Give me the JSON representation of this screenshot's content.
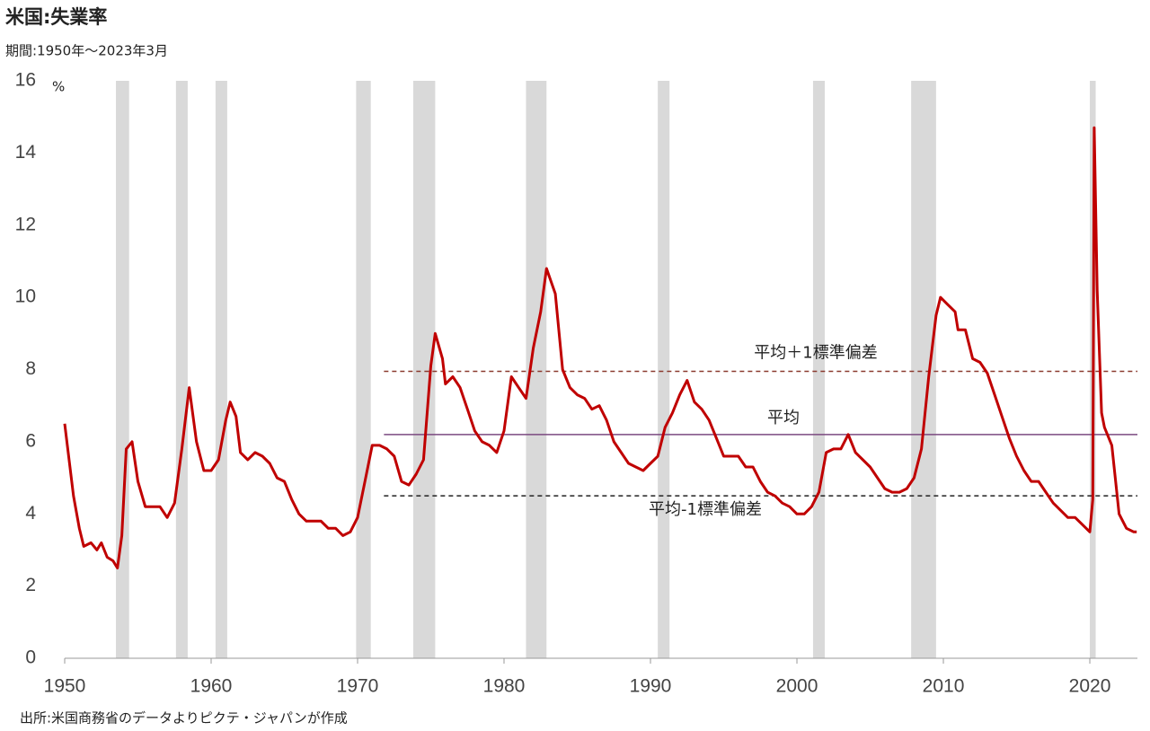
{
  "chart_data": {
    "type": "line",
    "title": "米国:失業率",
    "subtitle": "期間:1950年～2023年3月",
    "source": "出所:米国商務省のデータよりピクテ・ジャパンが作成",
    "y_unit": "%",
    "color": "#c00000",
    "xlim": [
      1950,
      2023.25
    ],
    "ylim": [
      0,
      16
    ],
    "xticks": [
      1950,
      1960,
      1970,
      1980,
      1990,
      2000,
      2010,
      2020
    ],
    "yticks": [
      0,
      2,
      4,
      6,
      8,
      10,
      12,
      14,
      16
    ],
    "recessions": [
      [
        1953.5,
        1954.4
      ],
      [
        1957.6,
        1958.4
      ],
      [
        1960.3,
        1961.1
      ],
      [
        1969.9,
        1970.9
      ],
      [
        1973.8,
        1975.3
      ],
      [
        1981.5,
        1982.9
      ],
      [
        1990.5,
        1991.3
      ],
      [
        2001.1,
        2001.9
      ],
      [
        2007.8,
        2009.5
      ],
      [
        2020.0,
        2020.4
      ]
    ],
    "reference_lines": [
      {
        "label": "平均＋1標準偏差",
        "value": 7.95,
        "from": 1971.8,
        "color": "#8b3a2f",
        "dashed": true
      },
      {
        "label": "平均",
        "value": 6.2,
        "from": 1971.8,
        "color": "#7b4a80",
        "dashed": false
      },
      {
        "label": "平均-1標準偏差",
        "value": 4.5,
        "from": 1971.8,
        "color": "#222222",
        "dashed": true
      }
    ],
    "x": [
      1950.0,
      1950.3,
      1950.6,
      1951.0,
      1951.3,
      1951.8,
      1952.2,
      1952.5,
      1952.9,
      1953.3,
      1953.6,
      1953.9,
      1954.2,
      1954.6,
      1955.0,
      1955.5,
      1956.0,
      1956.5,
      1957.0,
      1957.5,
      1958.0,
      1958.5,
      1959.0,
      1959.5,
      1960.0,
      1960.5,
      1961.0,
      1961.3,
      1961.7,
      1962.0,
      1962.5,
      1963.0,
      1963.5,
      1964.0,
      1964.5,
      1965.0,
      1965.5,
      1966.0,
      1966.5,
      1967.0,
      1967.5,
      1968.0,
      1968.5,
      1969.0,
      1969.5,
      1970.0,
      1970.5,
      1971.0,
      1971.5,
      1972.0,
      1972.5,
      1973.0,
      1973.5,
      1974.0,
      1974.5,
      1975.0,
      1975.3,
      1975.8,
      1976.0,
      1976.5,
      1977.0,
      1977.5,
      1978.0,
      1978.5,
      1979.0,
      1979.5,
      1980.0,
      1980.5,
      1981.0,
      1981.5,
      1982.0,
      1982.5,
      1982.9,
      1983.5,
      1984.0,
      1984.5,
      1985.0,
      1985.5,
      1986.0,
      1986.5,
      1987.0,
      1987.5,
      1988.0,
      1988.5,
      1989.0,
      1989.5,
      1990.0,
      1990.5,
      1991.0,
      1991.5,
      1992.0,
      1992.5,
      1993.0,
      1993.5,
      1994.0,
      1994.5,
      1995.0,
      1995.5,
      1996.0,
      1996.5,
      1997.0,
      1997.5,
      1998.0,
      1998.5,
      1999.0,
      1999.5,
      2000.0,
      2000.5,
      2001.0,
      2001.5,
      2002.0,
      2002.5,
      2003.0,
      2003.5,
      2004.0,
      2004.5,
      2005.0,
      2005.5,
      2006.0,
      2006.5,
      2007.0,
      2007.5,
      2008.0,
      2008.5,
      2009.0,
      2009.5,
      2009.8,
      2010.3,
      2010.8,
      2011.0,
      2011.5,
      2012.0,
      2012.5,
      2013.0,
      2013.5,
      2014.0,
      2014.5,
      2015.0,
      2015.5,
      2016.0,
      2016.5,
      2017.0,
      2017.5,
      2018.0,
      2018.5,
      2019.0,
      2019.5,
      2020.0,
      2020.2,
      2020.3,
      2020.5,
      2020.8,
      2021.0,
      2021.5,
      2022.0,
      2022.5,
      2023.0,
      2023.2
    ],
    "values": [
      6.5,
      5.5,
      4.5,
      3.6,
      3.1,
      3.2,
      3.0,
      3.2,
      2.8,
      2.7,
      2.5,
      3.4,
      5.8,
      6.0,
      4.9,
      4.2,
      4.2,
      4.2,
      3.9,
      4.3,
      5.8,
      7.5,
      6.0,
      5.2,
      5.2,
      5.5,
      6.6,
      7.1,
      6.7,
      5.7,
      5.5,
      5.7,
      5.6,
      5.4,
      5.0,
      4.9,
      4.4,
      4.0,
      3.8,
      3.8,
      3.8,
      3.6,
      3.6,
      3.4,
      3.5,
      3.9,
      4.9,
      5.9,
      5.9,
      5.8,
      5.6,
      4.9,
      4.8,
      5.1,
      5.5,
      8.1,
      9.0,
      8.3,
      7.6,
      7.8,
      7.5,
      6.9,
      6.3,
      6.0,
      5.9,
      5.7,
      6.3,
      7.8,
      7.5,
      7.2,
      8.6,
      9.6,
      10.8,
      10.1,
      8.0,
      7.5,
      7.3,
      7.2,
      6.9,
      7.0,
      6.6,
      6.0,
      5.7,
      5.4,
      5.3,
      5.2,
      5.4,
      5.6,
      6.4,
      6.8,
      7.3,
      7.7,
      7.1,
      6.9,
      6.6,
      6.1,
      5.6,
      5.6,
      5.6,
      5.3,
      5.3,
      4.9,
      4.6,
      4.5,
      4.3,
      4.2,
      4.0,
      4.0,
      4.2,
      4.6,
      5.7,
      5.8,
      5.8,
      6.2,
      5.7,
      5.5,
      5.3,
      5.0,
      4.7,
      4.6,
      4.6,
      4.7,
      5.0,
      5.8,
      7.8,
      9.5,
      10.0,
      9.8,
      9.6,
      9.1,
      9.1,
      8.3,
      8.2,
      7.9,
      7.3,
      6.7,
      6.1,
      5.6,
      5.2,
      4.9,
      4.9,
      4.6,
      4.3,
      4.1,
      3.9,
      3.9,
      3.7,
      3.5,
      4.4,
      14.7,
      10.2,
      6.8,
      6.4,
      5.9,
      4.0,
      3.6,
      3.5,
      3.5
    ]
  }
}
